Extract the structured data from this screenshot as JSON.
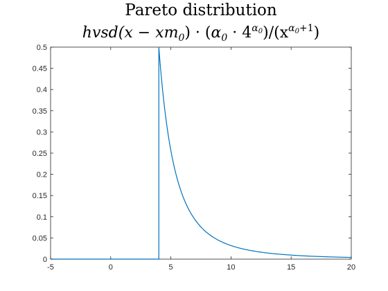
{
  "chart_data": {
    "type": "line",
    "title": "Pareto distribution",
    "subtitle": "hvsd(x − xm₀) · (α₀ · 4^α₀)/(x^(α₀+1))",
    "subtitle_parts": {
      "a": "hvsd(x − xm",
      "sub0": "0",
      "b": ") · (",
      "alpha": "α",
      "c": " · 4",
      "d": ")/(x",
      "plus1": "+1",
      "e": ")"
    },
    "xlabel": "",
    "ylabel": "",
    "xlim": [
      -5,
      20
    ],
    "ylim": [
      0,
      0.5
    ],
    "xticks": [
      "-5",
      "0",
      "5",
      "10",
      "15",
      "20"
    ],
    "yticks": [
      "0",
      "0.05",
      "0.1",
      "0.15",
      "0.2",
      "0.25",
      "0.3",
      "0.35",
      "0.4",
      "0.45",
      "0.5"
    ],
    "grid": false,
    "color": "#0072BD",
    "function": {
      "xm": 4,
      "alpha": 2
    },
    "series": [
      {
        "x": [
          -5,
          4,
          4,
          4.5,
          5,
          5.5,
          6,
          6.5,
          7,
          7.5,
          8,
          9,
          10,
          11,
          12,
          13,
          14,
          15,
          16,
          17,
          18,
          19,
          20
        ],
        "values": [
          0,
          0,
          0.5,
          0.351,
          0.256,
          0.192,
          0.148,
          0.117,
          0.093,
          0.076,
          0.0625,
          0.0439,
          0.032,
          0.024,
          0.0185,
          0.0146,
          0.0117,
          0.0095,
          0.0078,
          0.0065,
          0.0055,
          0.0047,
          0.004
        ]
      }
    ]
  }
}
